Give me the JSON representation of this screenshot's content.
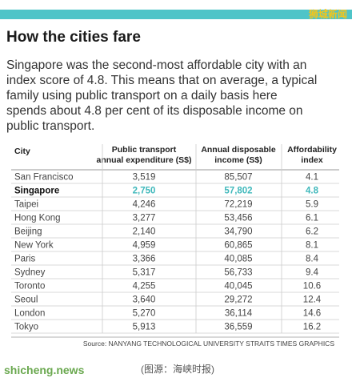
{
  "header": {
    "watermark": "狮城新闻",
    "title": "How the cities fare"
  },
  "intro": [
    "Singapore was the second-most affordable city with an",
    "index score of 4.8. This means that on average, a typical",
    "family using public transport on a daily basis here",
    "spends about 4.8 per cent of its disposable income on",
    "public transport."
  ],
  "table": {
    "columns": [
      [
        "City"
      ],
      [
        "Public transport",
        "annual expenditure (S$)"
      ],
      [
        "Annual disposable",
        "income (S$)"
      ],
      [
        "Affordability",
        "index"
      ]
    ],
    "rows": [
      [
        "San Francisco",
        "3,519",
        "85,507",
        "4.1"
      ],
      [
        "Singapore",
        "2,750",
        "57,802",
        "4.8"
      ],
      [
        "Taipei",
        "4,246",
        "72,219",
        "5.9"
      ],
      [
        "Hong Kong",
        "3,277",
        "53,456",
        "6.1"
      ],
      [
        "Beijing",
        "2,140",
        "34,790",
        "6.2"
      ],
      [
        "New York",
        "4,959",
        "60,865",
        "8.1"
      ],
      [
        "Paris",
        "3,366",
        "40,085",
        "8.4"
      ],
      [
        "Sydney",
        "5,317",
        "56,733",
        "9.4"
      ],
      [
        "Toronto",
        "4,255",
        "40,045",
        "10.6"
      ],
      [
        "Seoul",
        "3,640",
        "29,272",
        "12.4"
      ],
      [
        "London",
        "5,270",
        "36,114",
        "14.6"
      ],
      [
        "Tokyo",
        "5,913",
        "36,559",
        "16.2"
      ]
    ],
    "highlighted_row": 1,
    "highlight_color": "#3fb8bb"
  },
  "source": "Source: NANYANG TECHNOLOGICAL UNIVERSITY   STRAITS TIMES GRAPHICS",
  "footer": {
    "site": "shicheng.news",
    "credit": "(图源：海峡时报)"
  }
}
